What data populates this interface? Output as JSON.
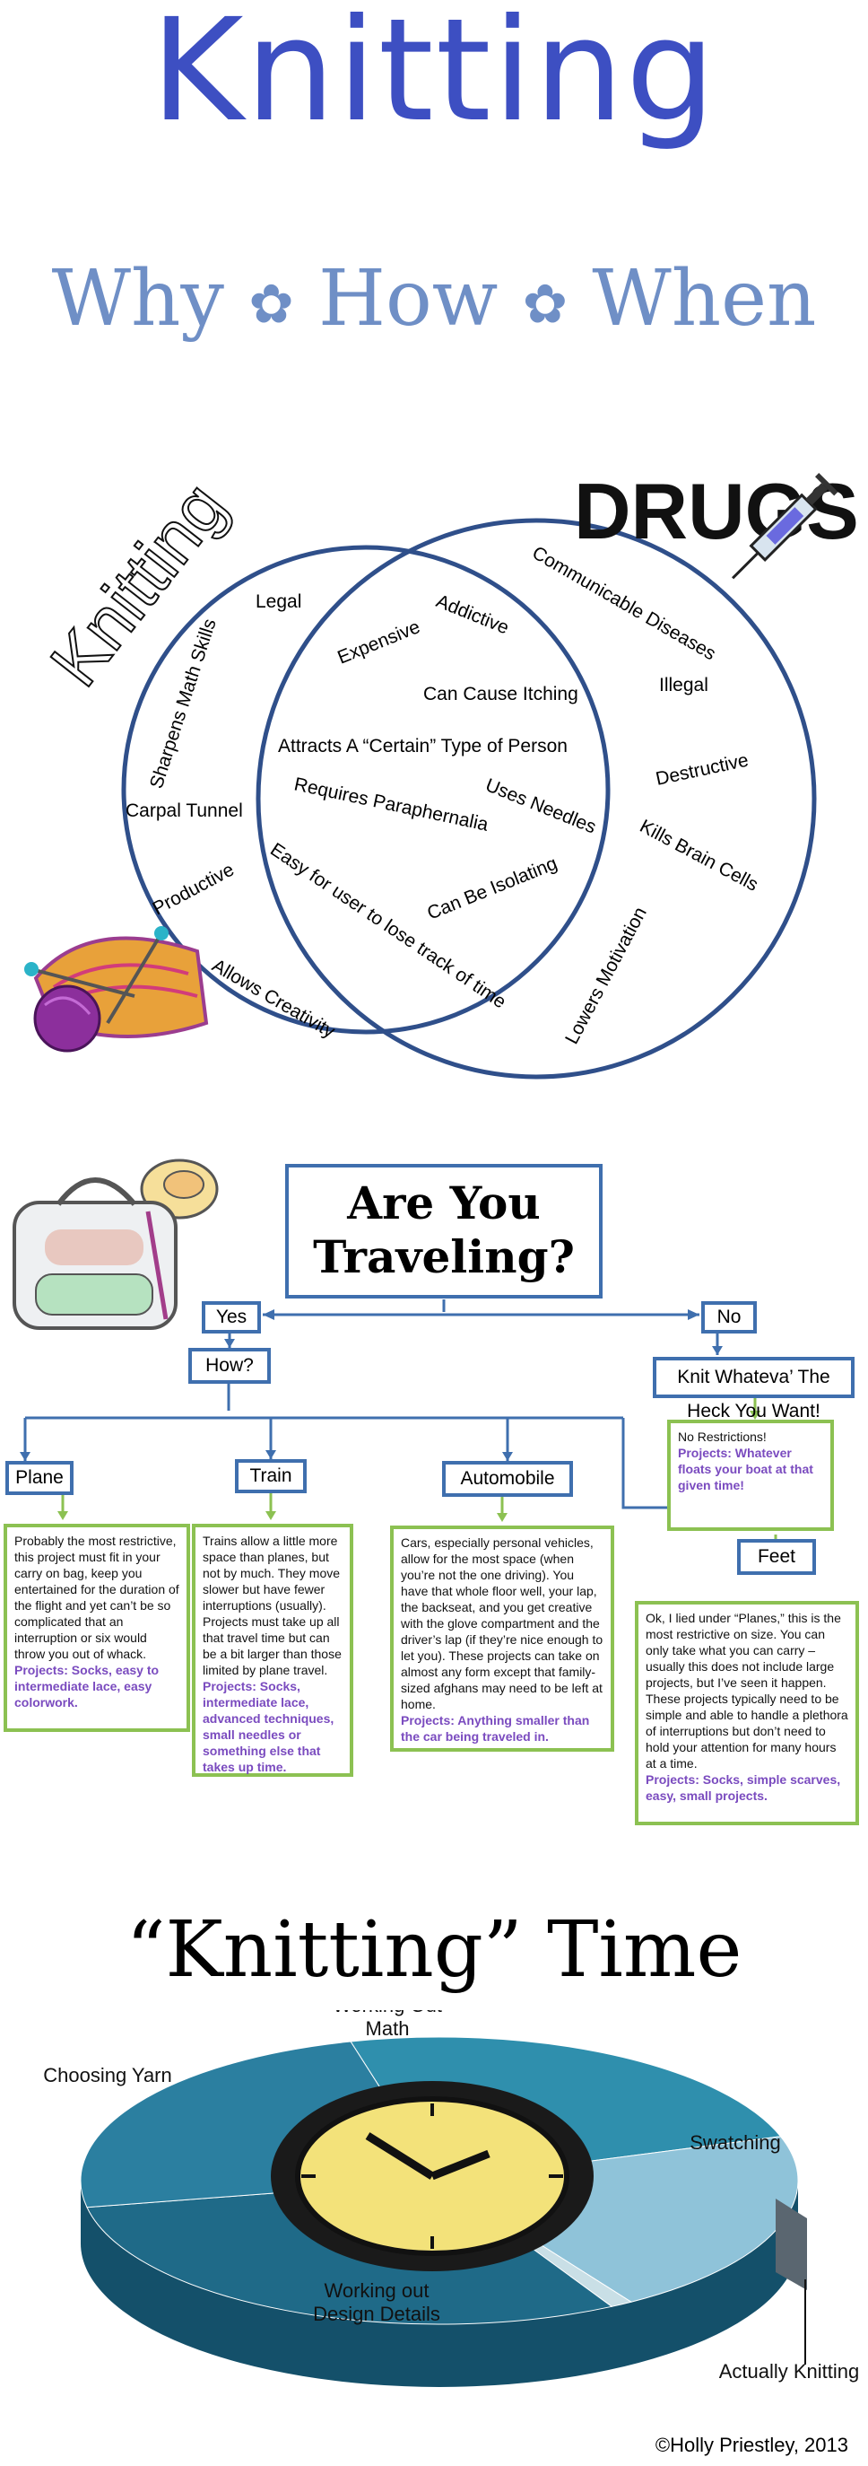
{
  "header": {
    "title": "Knitting",
    "subtitle": [
      "Why",
      "How",
      "When"
    ]
  },
  "venn": {
    "left_title": "Knitting",
    "right_title": "DRUGS",
    "left_only": [
      "Legal",
      "Sharpens Math Skills",
      "Carpal Tunnel",
      "Productive",
      "Allows Creativity"
    ],
    "overlap": [
      "Addictive",
      "Expensive",
      "Can Cause Itching",
      "Attracts A “Certain” Type of Person",
      "Requires Paraphernalia",
      "Uses Needles",
      "Easy for user to lose track of time",
      "Can Be Isolating"
    ],
    "right_only": [
      "Communicable Diseases",
      "Illegal",
      "Destructive",
      "Kills Brain Cells",
      "Lowers Motivation"
    ]
  },
  "flowchart": {
    "question_line1": "Are You",
    "question_line2": "Traveling?",
    "yes": "Yes",
    "no": "No",
    "how": "How?",
    "no_answer": "Knit Whateva’ The Heck You Want!",
    "no_detail_text": "No Restrictions!",
    "no_detail_projects": "Projects: Whatever floats your boat at that given time!",
    "modes": [
      {
        "label": "Plane",
        "text": "Probably the most restrictive, this project must fit in your carry on bag, keep you entertained for the duration of the flight and yet can’t be so complicated that an interruption or six would throw you out of whack.",
        "projects": "Projects: Socks, easy to intermediate lace, easy colorwork."
      },
      {
        "label": "Train",
        "text": "Trains allow a little more space than planes, but not by much. They move slower but have fewer interruptions (usually). Projects must take up all that travel time but can be a bit larger than those limited by plane travel.",
        "projects": "Projects: Socks, intermediate lace, advanced techniques, small needles or something else that takes up time."
      },
      {
        "label": "Automobile",
        "text": "Cars, especially personal vehicles, allow for the most space (when you’re not the one driving). You have that whole floor well, your lap, the backseat, and you get creative with the glove compartment and the driver’s lap (if they’re nice enough to let you). These projects can take on almost any form except that family-sized afghans may need to be left at home.",
        "projects": "Projects: Anything smaller than the car being traveled in."
      },
      {
        "label": "Feet",
        "text": "Ok, I lied under “Planes,” this is the most restrictive on size. You can only take what you can carry – usually this does not include large projects, but I’ve seen it happen. These projects typically need to be simple and able to handle a plethora of interruptions but don’t need to hold your attention for many hours at a time.",
        "projects": "Projects: Socks, simple scarves, easy, small projects."
      }
    ]
  },
  "pie_title": "“Knitting” Time",
  "chart_data": {
    "type": "pie",
    "title": "“Knitting” Time",
    "categories": [
      "Working Out Math",
      "Swatching",
      "Actually Knitting",
      "Working out Design Details",
      "Choosing Yarn"
    ],
    "values": [
      24,
      21,
      1,
      30,
      24
    ],
    "colors": [
      "#2f8fad",
      "#8fc3d9",
      "#c9dfe6",
      "#1f6a88",
      "#2b7fa0"
    ]
  },
  "copyright": "©Holly Priestley, 2013"
}
